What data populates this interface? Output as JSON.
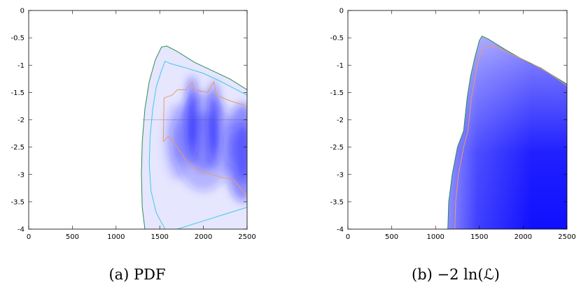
{
  "chart_data": [
    {
      "type": "heatmap",
      "caption": "(a) PDF",
      "xlim": [
        0,
        2500
      ],
      "ylim": [
        -4,
        0
      ],
      "x_ticks": [
        "0",
        "500",
        "1000",
        "1500",
        "2000",
        "2500"
      ],
      "y_ticks": [
        "0",
        "-0.5",
        "-1",
        "-1.5",
        "-2",
        "-2.5",
        "-3",
        "-3.5",
        "-4"
      ],
      "colors": {
        "fill": "#1a1aff",
        "outer_contour": "#2e8b57",
        "middle_contour": "#40c8e0",
        "inner_contour": "#e89a6a"
      },
      "contours": [
        {
          "level": "outer",
          "points": [
            [
              1330,
              -4
            ],
            [
              1300,
              -3.6
            ],
            [
              1290,
              -3.0
            ],
            [
              1300,
              -2.4
            ],
            [
              1330,
              -1.8
            ],
            [
              1380,
              -1.3
            ],
            [
              1450,
              -0.9
            ],
            [
              1520,
              -0.67
            ],
            [
              1580,
              -0.65
            ],
            [
              1700,
              -0.75
            ],
            [
              1900,
              -0.95
            ],
            [
              2100,
              -1.1
            ],
            [
              2300,
              -1.25
            ],
            [
              2500,
              -1.45
            ]
          ]
        },
        {
          "level": "middle",
          "points": [
            [
              1560,
              -4
            ],
            [
              1460,
              -3.7
            ],
            [
              1400,
              -3.3
            ],
            [
              1380,
              -2.8
            ],
            [
              1390,
              -2.3
            ],
            [
              1420,
              -1.8
            ],
            [
              1460,
              -1.4
            ],
            [
              1520,
              -1.1
            ],
            [
              1560,
              -0.93
            ],
            [
              1620,
              -0.97
            ],
            [
              1800,
              -1.05
            ],
            [
              2000,
              -1.15
            ],
            [
              2200,
              -1.3
            ],
            [
              2500,
              -1.55
            ],
            [
              2500,
              -3.6
            ],
            [
              2300,
              -3.7
            ],
            [
              2100,
              -3.8
            ],
            [
              1900,
              -3.9
            ],
            [
              1700,
              -4
            ]
          ]
        },
        {
          "level": "inner",
          "points": [
            [
              1540,
              -2.4
            ],
            [
              1550,
              -1.6
            ],
            [
              1640,
              -1.55
            ],
            [
              1700,
              -1.45
            ],
            [
              1800,
              -1.45
            ],
            [
              1870,
              -1.3
            ],
            [
              1900,
              -1.45
            ],
            [
              2050,
              -1.5
            ],
            [
              2120,
              -1.3
            ],
            [
              2150,
              -1.55
            ],
            [
              2300,
              -1.65
            ],
            [
              2500,
              -1.75
            ],
            [
              2500,
              -3.4
            ],
            [
              2350,
              -3.1
            ],
            [
              2200,
              -3.05
            ],
            [
              2100,
              -3.0
            ],
            [
              1950,
              -2.95
            ],
            [
              1800,
              -2.75
            ],
            [
              1700,
              -2.5
            ],
            [
              1600,
              -2.3
            ],
            [
              1540,
              -2.4
            ]
          ]
        }
      ],
      "density_peaks": [
        {
          "x": 1870,
          "y": -2.0,
          "sx": 80,
          "sy": 0.8,
          "w": 1.0
        },
        {
          "x": 2120,
          "y": -2.1,
          "sx": 80,
          "sy": 0.8,
          "w": 0.9
        },
        {
          "x": 2450,
          "y": -2.6,
          "sx": 200,
          "sy": 0.9,
          "w": 0.95
        },
        {
          "x": 2000,
          "y": -2.4,
          "sx": 350,
          "sy": 0.9,
          "w": 0.55
        },
        {
          "x": 1700,
          "y": -2.4,
          "sx": 150,
          "sy": 0.7,
          "w": 0.35
        }
      ]
    },
    {
      "type": "heatmap",
      "caption": "(b) −2 ln(ℒ)",
      "xlim": [
        0,
        2500
      ],
      "ylim": [
        -4,
        0
      ],
      "x_ticks": [
        "0",
        "500",
        "1000",
        "1500",
        "2000",
        "2500"
      ],
      "y_ticks": [
        "0",
        "-0.5",
        "-1",
        "-1.5",
        "-2",
        "-2.5",
        "-3",
        "-3.5",
        "-4"
      ],
      "colors": {
        "fill": "#1a1aff",
        "outer_contour": "#2e8b57",
        "inner_contour": "#e89a6a"
      },
      "contours": [
        {
          "level": "outer",
          "points": [
            [
              1140,
              -4
            ],
            [
              1150,
              -3.5
            ],
            [
              1190,
              -3.0
            ],
            [
              1250,
              -2.5
            ],
            [
              1320,
              -2.2
            ],
            [
              1340,
              -1.9
            ],
            [
              1360,
              -1.6
            ],
            [
              1400,
              -1.2
            ],
            [
              1450,
              -0.85
            ],
            [
              1500,
              -0.55
            ],
            [
              1530,
              -0.47
            ],
            [
              1600,
              -0.52
            ],
            [
              1800,
              -0.72
            ],
            [
              2000,
              -0.9
            ],
            [
              2200,
              -1.05
            ],
            [
              2400,
              -1.25
            ],
            [
              2500,
              -1.35
            ]
          ]
        },
        {
          "level": "inner",
          "points": [
            [
              1220,
              -4
            ],
            [
              1230,
              -3.5
            ],
            [
              1260,
              -3.0
            ],
            [
              1320,
              -2.5
            ],
            [
              1370,
              -2.2
            ],
            [
              1390,
              -1.9
            ],
            [
              1410,
              -1.6
            ],
            [
              1450,
              -1.25
            ],
            [
              1480,
              -0.95
            ],
            [
              1530,
              -0.72
            ],
            [
              1580,
              -0.65
            ],
            [
              1700,
              -0.67
            ],
            [
              1900,
              -0.82
            ],
            [
              2100,
              -0.97
            ],
            [
              2300,
              -1.15
            ],
            [
              2500,
              -1.38
            ]
          ]
        }
      ]
    }
  ]
}
